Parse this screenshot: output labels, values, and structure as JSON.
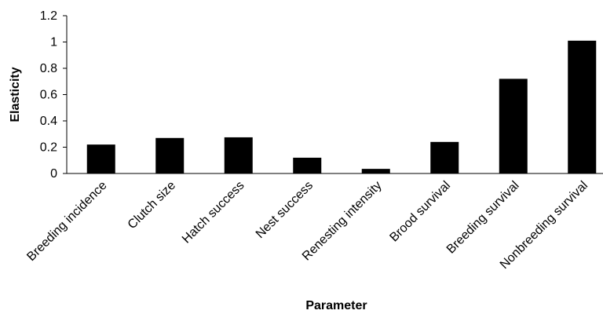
{
  "chart_data": {
    "type": "bar",
    "categories": [
      "Breeding incidence",
      "Clutch size",
      "Hatch success",
      "Nest success",
      "Renesting intensity",
      "Brood survival",
      "Breeding survival",
      "Nonbreeding survival"
    ],
    "values": [
      0.22,
      0.27,
      0.275,
      0.12,
      0.035,
      0.24,
      0.72,
      1.01
    ],
    "xlabel": "Parameter",
    "ylabel": "Elasticity",
    "ylim": [
      0,
      1.2
    ],
    "yticks": [
      "0",
      "0.2",
      "0.4",
      "0.6",
      "0.8",
      "1",
      "1.2"
    ],
    "grid": false,
    "bar_color": "#000000"
  }
}
